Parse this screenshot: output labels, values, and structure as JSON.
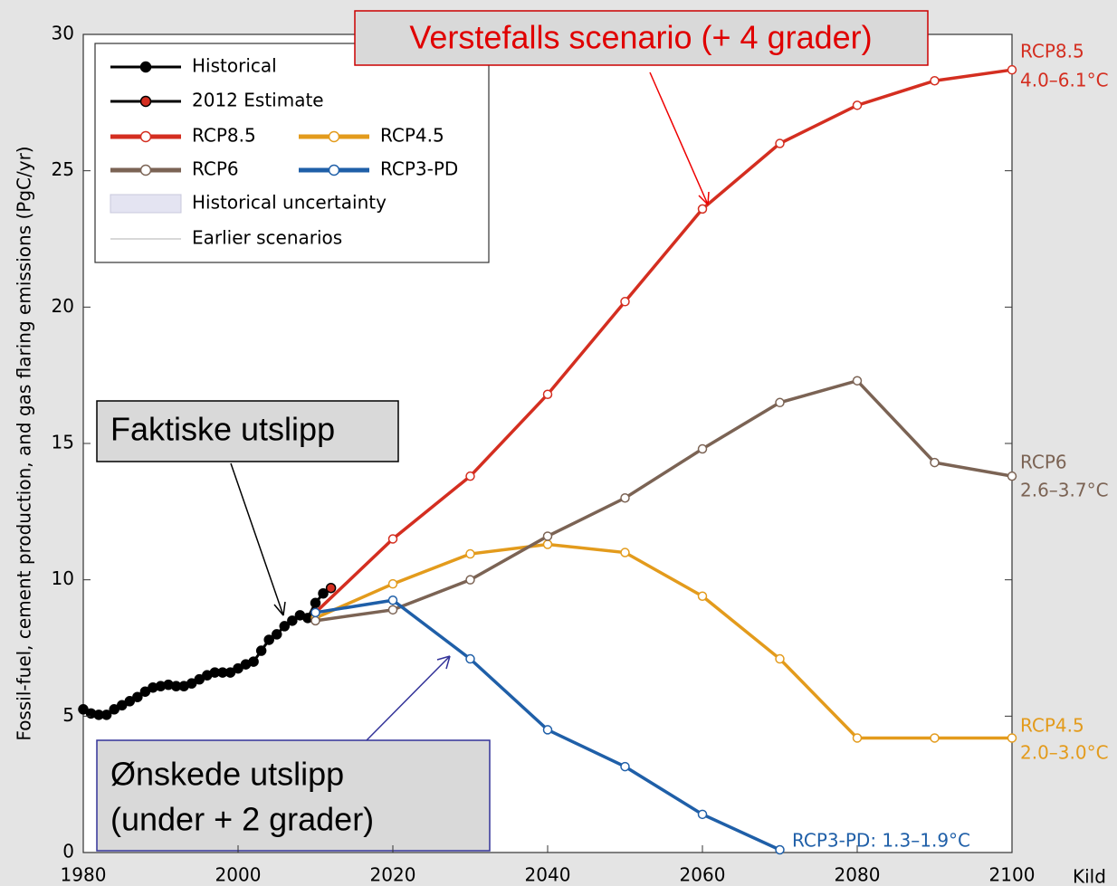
{
  "chart_data": {
    "type": "line",
    "y_label": "Fossil-fuel, cement production, and gas flaring emissions (PgC/yr)",
    "xlim": [
      1980,
      2100
    ],
    "xticks": [
      1980,
      2000,
      2020,
      2040,
      2060,
      2080,
      2100
    ],
    "ylim": [
      0,
      30
    ],
    "yticks": [
      0,
      5,
      10,
      15,
      20,
      25,
      30
    ],
    "series": [
      {
        "name": "Historical",
        "color": "#000000",
        "marker": "filled",
        "x": [
          1980,
          1981,
          1982,
          1983,
          1984,
          1985,
          1986,
          1987,
          1988,
          1989,
          1990,
          1991,
          1992,
          1993,
          1994,
          1995,
          1996,
          1997,
          1998,
          1999,
          2000,
          2001,
          2002,
          2003,
          2004,
          2005,
          2006,
          2007,
          2008,
          2009,
          2010,
          2011
        ],
        "values": [
          5.25,
          5.1,
          5.05,
          5.05,
          5.25,
          5.4,
          5.55,
          5.7,
          5.9,
          6.05,
          6.1,
          6.15,
          6.1,
          6.1,
          6.2,
          6.35,
          6.5,
          6.6,
          6.6,
          6.6,
          6.75,
          6.9,
          7.0,
          7.4,
          7.8,
          8.0,
          8.3,
          8.5,
          8.7,
          8.6,
          9.15,
          9.5
        ]
      },
      {
        "name": "2012 Estimate",
        "color": "#d42e20",
        "marker": "filled",
        "x": [
          2012
        ],
        "values": [
          9.7
        ]
      },
      {
        "name": "RCP8.5",
        "color": "#d42e20",
        "marker": "open",
        "x": [
          2010,
          2020,
          2030,
          2040,
          2050,
          2060,
          2070,
          2080,
          2090,
          2100
        ],
        "values": [
          8.8,
          11.5,
          13.8,
          16.8,
          20.2,
          23.6,
          26.0,
          27.4,
          28.3,
          28.7
        ]
      },
      {
        "name": "RCP4.5",
        "color": "#e39b1c",
        "marker": "open",
        "x": [
          2010,
          2020,
          2030,
          2040,
          2050,
          2060,
          2070,
          2080,
          2090,
          2100
        ],
        "values": [
          8.6,
          9.85,
          10.95,
          11.3,
          11.0,
          9.4,
          7.1,
          4.2,
          4.2,
          4.2
        ]
      },
      {
        "name": "RCP6",
        "color": "#7b6354",
        "marker": "open",
        "x": [
          2010,
          2020,
          2030,
          2040,
          2050,
          2060,
          2070,
          2080,
          2090,
          2100
        ],
        "values": [
          8.5,
          8.9,
          10.0,
          11.6,
          13.0,
          14.8,
          16.5,
          17.3,
          14.3,
          13.8
        ]
      },
      {
        "name": "RCP3-PD",
        "color": "#1f5fa8",
        "marker": "open",
        "x": [
          2010,
          2020,
          2030,
          2040,
          2050,
          2060,
          2070
        ],
        "values": [
          8.8,
          9.25,
          7.1,
          4.5,
          3.15,
          1.4,
          0.1
        ]
      }
    ],
    "legend_extra": [
      "Historical uncertainty",
      "Earlier scenarios"
    ],
    "end_labels": [
      {
        "name": "RCP8.5",
        "range": "4.0–6.1°C"
      },
      {
        "name": "RCP6",
        "range": "2.6–3.7°C"
      },
      {
        "name": "RCP4.5",
        "range": "2.0–3.0°C"
      }
    ],
    "rcp3_label": "RCP3-PD: 1.3–1.9°C",
    "annotations": [
      "Verstefalls scenario (+ 4 grader)",
      "Faktiske utslipp",
      "Ønskede utslipp",
      "(under + 2 grader)"
    ],
    "source": "Kild"
  }
}
